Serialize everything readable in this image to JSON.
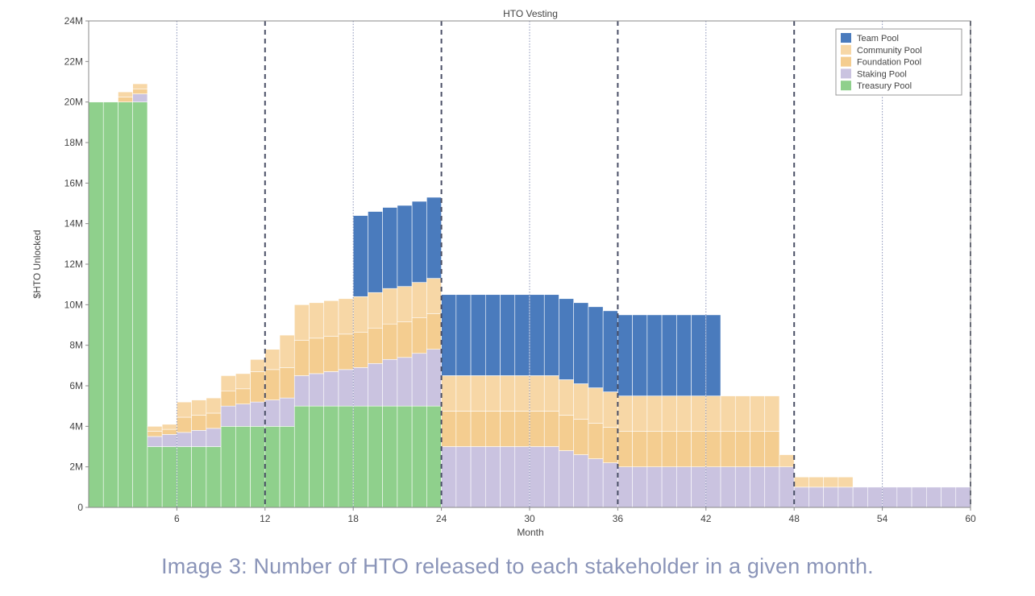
{
  "caption": "Image 3: Number of HTO released to each stakeholder in a given month.",
  "chart_data": {
    "type": "bar",
    "stacked": true,
    "title": "HTO Vesting",
    "xlabel": "Month",
    "ylabel": "$HTO Unlocked",
    "xlim": [
      0,
      60
    ],
    "ylim": [
      0,
      24000000
    ],
    "x_ticks": [
      6,
      12,
      18,
      24,
      30,
      36,
      42,
      48,
      54,
      60
    ],
    "y_ticks": [
      0,
      2000000,
      4000000,
      6000000,
      8000000,
      10000000,
      12000000,
      14000000,
      16000000,
      18000000,
      20000000,
      22000000,
      24000000
    ],
    "y_tick_labels": [
      "0",
      "2M",
      "4M",
      "6M",
      "8M",
      "10M",
      "12M",
      "14M",
      "16M",
      "18M",
      "20M",
      "22M",
      "24M"
    ],
    "dashed_vlines": [
      12,
      24,
      36,
      48,
      60
    ],
    "dotted_vlines": [
      6,
      18,
      30,
      42,
      54
    ],
    "legend_position": "top-right",
    "grid": false,
    "x": [
      1,
      2,
      3,
      4,
      5,
      6,
      7,
      8,
      9,
      10,
      11,
      12,
      13,
      14,
      15,
      16,
      17,
      18,
      19,
      20,
      21,
      22,
      23,
      24,
      25,
      26,
      27,
      28,
      29,
      30,
      31,
      32,
      33,
      34,
      35,
      36,
      37,
      38,
      39,
      40,
      41,
      42,
      43,
      44,
      45,
      46,
      47,
      48,
      49,
      50,
      51,
      52,
      53,
      54,
      55,
      56,
      57,
      58,
      59,
      60
    ],
    "series": [
      {
        "name": "Treasury Pool",
        "color": "#8fd08c",
        "values": [
          20,
          20,
          20,
          20,
          3,
          3,
          3,
          3,
          3,
          4,
          4,
          4,
          4,
          4,
          5,
          5,
          5,
          5,
          5,
          5,
          5,
          5,
          5,
          5,
          0,
          0,
          0,
          0,
          0,
          0,
          0,
          0,
          0,
          0,
          0,
          0,
          0,
          0,
          0,
          0,
          0,
          0,
          0,
          0,
          0,
          0,
          0,
          0,
          0,
          0,
          0,
          0,
          0,
          0,
          0,
          0,
          0,
          0,
          0,
          0
        ]
      },
      {
        "name": "Staking Pool",
        "color": "#cac3e0",
        "values": [
          0,
          0,
          0,
          0.4,
          0.5,
          0.6,
          0.7,
          0.8,
          0.9,
          1,
          1.1,
          1.2,
          1.3,
          1.4,
          1.5,
          1.6,
          1.7,
          1.8,
          1.9,
          2.1,
          2.3,
          2.4,
          2.6,
          2.8,
          3,
          3,
          3,
          3,
          3,
          3,
          3,
          3,
          2.8,
          2.6,
          2.4,
          2.2,
          2,
          2,
          2,
          2,
          2,
          2,
          2,
          2,
          2,
          2,
          2,
          2,
          1,
          1,
          1,
          1,
          1,
          1,
          1,
          1,
          1,
          1,
          1,
          1
        ]
      },
      {
        "name": "Foundation Pool",
        "color": "#f4cd90",
        "values": [
          0,
          0,
          0.25,
          0.25,
          0.25,
          0.25,
          0.75,
          0.75,
          0.75,
          0.75,
          0.75,
          1.5,
          1.5,
          1.5,
          1.75,
          1.75,
          1.75,
          1.75,
          1.75,
          1.75,
          1.75,
          1.75,
          1.75,
          1.75,
          1.75,
          1.75,
          1.75,
          1.75,
          1.75,
          1.75,
          1.75,
          1.75,
          1.75,
          1.75,
          1.75,
          1.75,
          1.75,
          1.75,
          1.75,
          1.75,
          1.75,
          1.75,
          1.75,
          1.75,
          1.75,
          1.75,
          1.75,
          0,
          0,
          0,
          0,
          0,
          0,
          0,
          0,
          0,
          0,
          0,
          0,
          0
        ]
      },
      {
        "name": "Community Pool",
        "color": "#f7d7a6",
        "values": [
          0,
          0,
          0.25,
          0.25,
          0.25,
          0.25,
          0.75,
          0.75,
          0.75,
          0.75,
          0.75,
          0.6,
          1.0,
          1.6,
          1.75,
          1.75,
          1.75,
          1.75,
          1.75,
          1.75,
          1.75,
          1.75,
          1.75,
          1.75,
          1.75,
          1.75,
          1.75,
          1.75,
          1.75,
          1.75,
          1.75,
          1.75,
          1.75,
          1.75,
          1.75,
          1.75,
          1.75,
          1.75,
          1.75,
          1.75,
          1.75,
          1.75,
          1.75,
          1.75,
          1.75,
          1.75,
          1.75,
          0.6,
          0.5,
          0.5,
          0.5,
          0.5,
          0,
          0,
          0,
          0,
          0,
          0,
          0,
          0
        ]
      },
      {
        "name": "Team Pool",
        "color": "#4a7bbd",
        "values": [
          0,
          0,
          0,
          0,
          0,
          0,
          0,
          0,
          0,
          0,
          0,
          0,
          0,
          0,
          0,
          0,
          0,
          0,
          4,
          4,
          4,
          4,
          4,
          4,
          4,
          4,
          4,
          4,
          4,
          4,
          4,
          4,
          4,
          4,
          4,
          4,
          4,
          4,
          4,
          4,
          4,
          4,
          4,
          0,
          0,
          0,
          0,
          0,
          0,
          0,
          0,
          0,
          0,
          0,
          0,
          0,
          0,
          0,
          0,
          0
        ]
      }
    ],
    "value_unit": "M",
    "legend": [
      "Team Pool",
      "Community Pool",
      "Foundation Pool",
      "Staking Pool",
      "Treasury Pool"
    ]
  }
}
